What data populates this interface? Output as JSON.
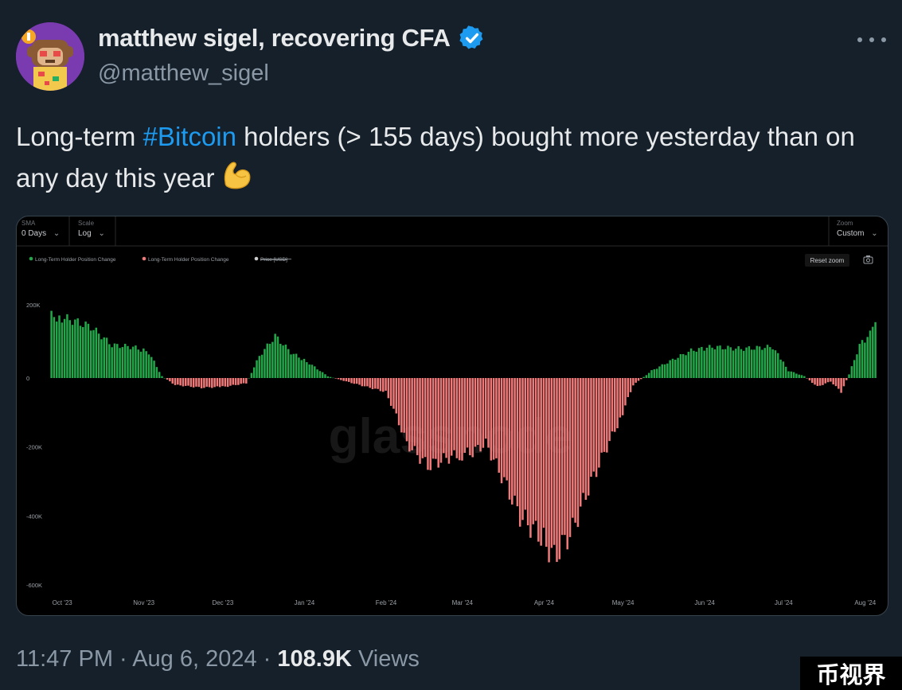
{
  "tweet": {
    "display_name": "matthew sigel, recovering CFA",
    "handle": "@matthew_sigel",
    "text_before": "Long-term ",
    "hashtag": "#Bitcoin",
    "text_after": " holders (> 155 days) bought more yesterday than on any day this year",
    "emoji": "flexed-biceps-emoji",
    "time": "11:47 PM",
    "separator": "·",
    "date": "Aug 6, 2024",
    "views_count": "108.9K",
    "views_label": "Views"
  },
  "chart_controls": {
    "sma_label": "SMA",
    "sma_value": "0 Days",
    "scale_label": "Scale",
    "scale_value": "Log",
    "zoom_label": "Zoom",
    "zoom_value": "Custom",
    "reset_zoom": "Reset zoom"
  },
  "chart_data": {
    "type": "bar",
    "legend": [
      {
        "name": "Long-Term Holder Position Change",
        "color": "#22a84a"
      },
      {
        "name": "Long-Term Holder Position Change",
        "color": "#f07a7a"
      },
      {
        "name": "Price [USD]",
        "color": "#cccccc",
        "hidden": true
      }
    ],
    "legend_placement": "top-left",
    "yticks": [
      "200K",
      "0",
      "-200K",
      "-400K",
      "-600K"
    ],
    "ylim": [
      -600000,
      200000
    ],
    "xticks": [
      "Oct '23",
      "Nov '23",
      "Dec '23",
      "Jan '24",
      "Feb '24",
      "Mar '24",
      "Apr '24",
      "May '24",
      "Jun '24",
      "Jul '24",
      "Aug '24"
    ],
    "x_range": [
      "2023-09-27",
      "2024-08-05"
    ],
    "positive_color": "#22a84a",
    "negative_color": "#f07a7a",
    "watermark": "glassnode",
    "keypoints": [
      {
        "x": "2023-09-27",
        "y": 170000
      },
      {
        "x": "2023-10-04",
        "y": 160000
      },
      {
        "x": "2023-10-12",
        "y": 140000
      },
      {
        "x": "2023-10-20",
        "y": 90000
      },
      {
        "x": "2023-10-28",
        "y": 85000
      },
      {
        "x": "2023-11-03",
        "y": 70000
      },
      {
        "x": "2023-11-08",
        "y": 5000
      },
      {
        "x": "2023-11-13",
        "y": -20000
      },
      {
        "x": "2023-11-23",
        "y": -28000
      },
      {
        "x": "2023-12-02",
        "y": -25000
      },
      {
        "x": "2023-12-10",
        "y": -15000
      },
      {
        "x": "2023-12-15",
        "y": 60000
      },
      {
        "x": "2023-12-21",
        "y": 115000
      },
      {
        "x": "2023-12-27",
        "y": 70000
      },
      {
        "x": "2024-01-03",
        "y": 40000
      },
      {
        "x": "2024-01-10",
        "y": 5000
      },
      {
        "x": "2024-01-17",
        "y": -10000
      },
      {
        "x": "2024-01-27",
        "y": -30000
      },
      {
        "x": "2024-02-01",
        "y": -40000
      },
      {
        "x": "2024-02-05",
        "y": -110000
      },
      {
        "x": "2024-02-09",
        "y": -190000
      },
      {
        "x": "2024-02-17",
        "y": -255000
      },
      {
        "x": "2024-02-25",
        "y": -230000
      },
      {
        "x": "2024-03-05",
        "y": -215000
      },
      {
        "x": "2024-03-10",
        "y": -190000
      },
      {
        "x": "2024-03-17",
        "y": -300000
      },
      {
        "x": "2024-03-23",
        "y": -400000
      },
      {
        "x": "2024-03-31",
        "y": -460000
      },
      {
        "x": "2024-04-05",
        "y": -520000
      },
      {
        "x": "2024-04-12",
        "y": -440000
      },
      {
        "x": "2024-04-18",
        "y": -320000
      },
      {
        "x": "2024-04-25",
        "y": -200000
      },
      {
        "x": "2024-04-30",
        "y": -120000
      },
      {
        "x": "2024-05-05",
        "y": -20000
      },
      {
        "x": "2024-05-12",
        "y": 20000
      },
      {
        "x": "2024-05-20",
        "y": 50000
      },
      {
        "x": "2024-05-27",
        "y": 75000
      },
      {
        "x": "2024-06-04",
        "y": 85000
      },
      {
        "x": "2024-06-15",
        "y": 80000
      },
      {
        "x": "2024-06-27",
        "y": 85000
      },
      {
        "x": "2024-07-03",
        "y": 20000
      },
      {
        "x": "2024-07-09",
        "y": 5000
      },
      {
        "x": "2024-07-14",
        "y": -25000
      },
      {
        "x": "2024-07-19",
        "y": -10000
      },
      {
        "x": "2024-07-23",
        "y": -40000
      },
      {
        "x": "2024-07-26",
        "y": 10000
      },
      {
        "x": "2024-07-30",
        "y": 90000
      },
      {
        "x": "2024-08-03",
        "y": 120000
      },
      {
        "x": "2024-08-05",
        "y": 165000
      }
    ]
  }
}
